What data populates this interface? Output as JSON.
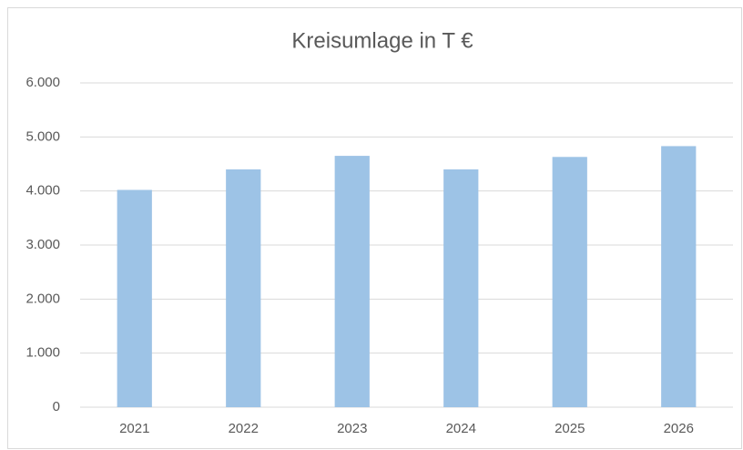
{
  "chart_data": {
    "type": "bar",
    "title": "Kreisumlage in T €",
    "categories": [
      "2021",
      "2022",
      "2023",
      "2024",
      "2025",
      "2026"
    ],
    "values": [
      4020,
      4400,
      4650,
      4400,
      4630,
      4830
    ],
    "color": "#9dc3e6",
    "ylim": [
      0,
      6000
    ],
    "yticks": [
      0,
      {
        "value": 1000,
        "label": "1.000"
      },
      {
        "value": 2000,
        "label": "2.000"
      },
      {
        "value": 3000,
        "label": "3.000"
      },
      {
        "value": 4000,
        "label": "4.000"
      },
      {
        "value": 5000,
        "label": "5.000"
      },
      {
        "value": 6000,
        "label": "6.000"
      }
    ],
    "grid": true
  }
}
